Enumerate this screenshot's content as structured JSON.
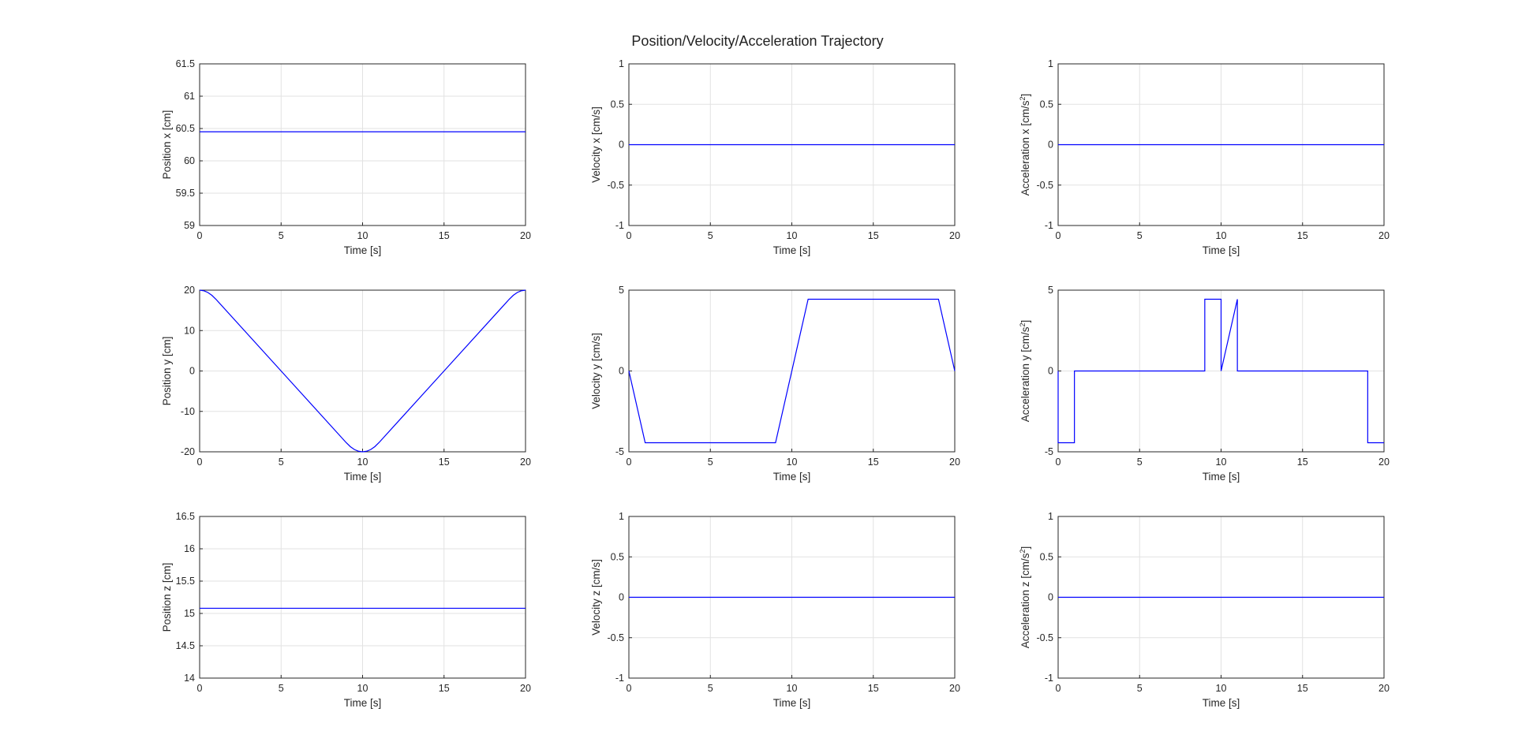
{
  "title": "Position/Velocity/Acceleration Trajectory",
  "series_color": "#0000ff",
  "chart_data": [
    {
      "type": "line",
      "ylabel_base": "Position x [cm]",
      "ylabel_sup": "",
      "ylabel_tail": "",
      "xlabel": "Time [s]",
      "xlim": [
        0,
        20
      ],
      "ylim": [
        59,
        61.5
      ],
      "xticks": [
        "0",
        "5",
        "10",
        "15",
        "20"
      ],
      "yticks": [
        "59",
        "59.5",
        "60",
        "60.5",
        "61",
        "61.5"
      ],
      "grid": true,
      "x": [
        0,
        20
      ],
      "y": [
        60.45,
        60.45
      ]
    },
    {
      "type": "line",
      "ylabel_base": "Velocity x [cm/s]",
      "ylabel_sup": "",
      "ylabel_tail": "",
      "xlabel": "Time [s]",
      "xlim": [
        0,
        20
      ],
      "ylim": [
        -1,
        1
      ],
      "xticks": [
        "0",
        "5",
        "10",
        "15",
        "20"
      ],
      "yticks": [
        "-1",
        "-0.5",
        "0",
        "0.5",
        "1"
      ],
      "grid": true,
      "x": [
        0,
        20
      ],
      "y": [
        0,
        0
      ]
    },
    {
      "type": "line",
      "ylabel_base": "Acceleration x [cm/s",
      "ylabel_sup": "2",
      "ylabel_tail": "]",
      "xlabel": "Time [s]",
      "xlim": [
        0,
        20
      ],
      "ylim": [
        -1,
        1
      ],
      "xticks": [
        "0",
        "5",
        "10",
        "15",
        "20"
      ],
      "yticks": [
        "-1",
        "-0.5",
        "0",
        "0.5",
        "1"
      ],
      "grid": true,
      "x": [
        0,
        20
      ],
      "y": [
        0,
        0
      ]
    },
    {
      "type": "line",
      "ylabel_base": "Position y [cm]",
      "ylabel_sup": "",
      "ylabel_tail": "",
      "xlabel": "Time [s]",
      "xlim": [
        0,
        20
      ],
      "ylim": [
        -20,
        20
      ],
      "xticks": [
        "0",
        "5",
        "10",
        "15",
        "20"
      ],
      "yticks": [
        "-20",
        "-10",
        "0",
        "10",
        "20"
      ],
      "grid": true,
      "x": [
        0,
        0.25,
        0.5,
        0.75,
        1,
        5,
        9,
        9.25,
        9.5,
        9.75,
        10,
        10.25,
        10.5,
        10.75,
        11,
        15,
        19,
        19.25,
        19.5,
        19.75,
        20
      ],
      "y": [
        20,
        19.86,
        19.44,
        18.73,
        17.75,
        0,
        -17.75,
        -18.73,
        -19.44,
        -19.86,
        -20,
        -19.86,
        -19.44,
        -18.73,
        -17.75,
        0,
        17.75,
        18.73,
        19.44,
        19.86,
        20
      ]
    },
    {
      "type": "line",
      "ylabel_base": "Velocity y [cm/s]",
      "ylabel_sup": "",
      "ylabel_tail": "",
      "xlabel": "Time [s]",
      "xlim": [
        0,
        20
      ],
      "ylim": [
        -5,
        5
      ],
      "xticks": [
        "0",
        "5",
        "10",
        "15",
        "20"
      ],
      "yticks": [
        "-5",
        "0",
        "5"
      ],
      "grid": true,
      "x": [
        0,
        1,
        9,
        11,
        19,
        20
      ],
      "y": [
        0,
        -4.44,
        -4.44,
        4.44,
        4.44,
        0
      ]
    },
    {
      "type": "line",
      "ylabel_base": "Acceleration y [cm/s",
      "ylabel_sup": "2",
      "ylabel_tail": "]",
      "xlabel": "Time [s]",
      "xlim": [
        0,
        20
      ],
      "ylim": [
        -5,
        5
      ],
      "xticks": [
        "0",
        "5",
        "10",
        "15",
        "20"
      ],
      "yticks": [
        "-5",
        "0",
        "5"
      ],
      "grid": true,
      "x": [
        0,
        0,
        1,
        1,
        9,
        9,
        10,
        10,
        11,
        11,
        19,
        19,
        20
      ],
      "y": [
        0,
        -4.44,
        -4.44,
        0,
        0,
        4.44,
        4.44,
        0,
        4.44,
        0,
        0,
        -4.44,
        -4.44
      ]
    },
    {
      "type": "line",
      "ylabel_base": "Position z [cm]",
      "ylabel_sup": "",
      "ylabel_tail": "",
      "xlabel": "Time [s]",
      "xlim": [
        0,
        20
      ],
      "ylim": [
        14,
        16.5
      ],
      "xticks": [
        "0",
        "5",
        "10",
        "15",
        "20"
      ],
      "yticks": [
        "14",
        "14.5",
        "15",
        "15.5",
        "16",
        "16.5"
      ],
      "grid": true,
      "x": [
        0,
        20
      ],
      "y": [
        15.08,
        15.08
      ]
    },
    {
      "type": "line",
      "ylabel_base": "Velocity z [cm/s]",
      "ylabel_sup": "",
      "ylabel_tail": "",
      "xlabel": "Time [s]",
      "xlim": [
        0,
        20
      ],
      "ylim": [
        -1,
        1
      ],
      "xticks": [
        "0",
        "5",
        "10",
        "15",
        "20"
      ],
      "yticks": [
        "-1",
        "-0.5",
        "0",
        "0.5",
        "1"
      ],
      "grid": true,
      "x": [
        0,
        20
      ],
      "y": [
        0,
        0
      ]
    },
    {
      "type": "line",
      "ylabel_base": "Acceleration z [cm/s",
      "ylabel_sup": "2",
      "ylabel_tail": "]",
      "xlabel": "Time [s]",
      "xlim": [
        0,
        20
      ],
      "ylim": [
        -1,
        1
      ],
      "xticks": [
        "0",
        "5",
        "10",
        "15",
        "20"
      ],
      "yticks": [
        "-1",
        "-0.5",
        "0",
        "0.5",
        "1"
      ],
      "grid": true,
      "x": [
        0,
        20
      ],
      "y": [
        0,
        0
      ]
    }
  ]
}
